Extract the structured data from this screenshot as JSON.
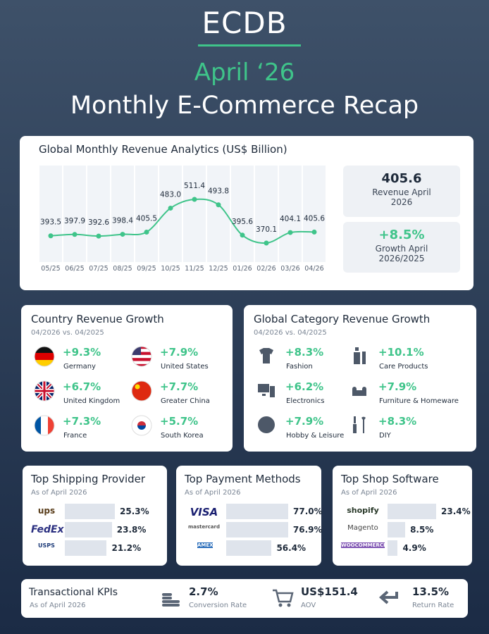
{
  "header": {
    "brand": "ECDB",
    "date": "April ‘26",
    "title": "Monthly E-Commerce Recap"
  },
  "revenue_chart": {
    "type": "line",
    "title": "Global Monthly Revenue Analytics (US$ Billion)",
    "categories": [
      "05/25",
      "06/25",
      "07/25",
      "08/25",
      "09/25",
      "10/25",
      "11/25",
      "12/25",
      "01/26",
      "02/26",
      "03/26",
      "04/26"
    ],
    "values": [
      393.5,
      397.9,
      392.6,
      398.4,
      405.5,
      483.0,
      511.4,
      493.8,
      395.6,
      370.1,
      404.1,
      405.6
    ],
    "value_labels": [
      "393.5",
      "397.9",
      "392.6",
      "398.4",
      "405.5",
      "483.0",
      "511.4",
      "493.8",
      "395.6",
      "370.1",
      "404.1",
      "405.6"
    ],
    "color": "#3fc48a"
  },
  "highlights": [
    {
      "value": "405.6",
      "label": "Revenue April 2026"
    },
    {
      "value": "+8.5%",
      "label": "Growth April 2026/2025"
    }
  ],
  "country_growth": {
    "title": "Country Revenue Growth",
    "subtitle": "04/2026 vs. 04/2025",
    "items": [
      {
        "growth": "+9.3%",
        "name": "Germany"
      },
      {
        "growth": "+7.9%",
        "name": "United States"
      },
      {
        "growth": "+6.7%",
        "name": "United Kingdom"
      },
      {
        "growth": "+7.7%",
        "name": "Greater China"
      },
      {
        "growth": "+7.3%",
        "name": "France"
      },
      {
        "growth": "+5.7%",
        "name": "South Korea"
      }
    ]
  },
  "category_growth": {
    "title": "Global Category Revenue Growth",
    "subtitle": "04/2026 vs. 04/2025",
    "items": [
      {
        "growth": "+8.3%",
        "name": "Fashion"
      },
      {
        "growth": "+10.1%",
        "name": "Care Products"
      },
      {
        "growth": "+6.2%",
        "name": "Electronics"
      },
      {
        "growth": "+7.9%",
        "name": "Furniture & Homeware"
      },
      {
        "growth": "+7.9%",
        "name": "Hobby & Leisure"
      },
      {
        "growth": "+8.3%",
        "name": "DIY"
      }
    ]
  },
  "shipping": {
    "title": "Top Shipping Provider",
    "subtitle": "As of April 2026",
    "logos": [
      "ups",
      "FedEx",
      "USPS"
    ],
    "values": [
      25.3,
      23.8,
      21.2
    ],
    "value_labels": [
      "25.3%",
      "23.8%",
      "21.2%"
    ]
  },
  "payment": {
    "title": "Top Payment Methods",
    "subtitle": "As of April 2026",
    "logos": [
      "VISA",
      "mastercard",
      "AMEX"
    ],
    "values": [
      77.0,
      76.9,
      56.4
    ],
    "value_labels": [
      "77.0%",
      "76.9%",
      "56.4%"
    ]
  },
  "software": {
    "title": "Top Shop Software",
    "subtitle": "As of April 2026",
    "logos": [
      "shopify",
      "Magento",
      "WOOCOMMERCE"
    ],
    "values": [
      23.4,
      8.5,
      4.9
    ],
    "value_labels": [
      "23.4%",
      "8.5%",
      "4.9%"
    ]
  },
  "kpis": {
    "title": "Transactional KPIs",
    "subtitle": "As of April 2026",
    "items": [
      {
        "value": "2.7%",
        "label": "Conversion Rate"
      },
      {
        "value": "US$151.4",
        "label": "AOV"
      },
      {
        "value": "13.5%",
        "label": "Return Rate"
      }
    ]
  }
}
